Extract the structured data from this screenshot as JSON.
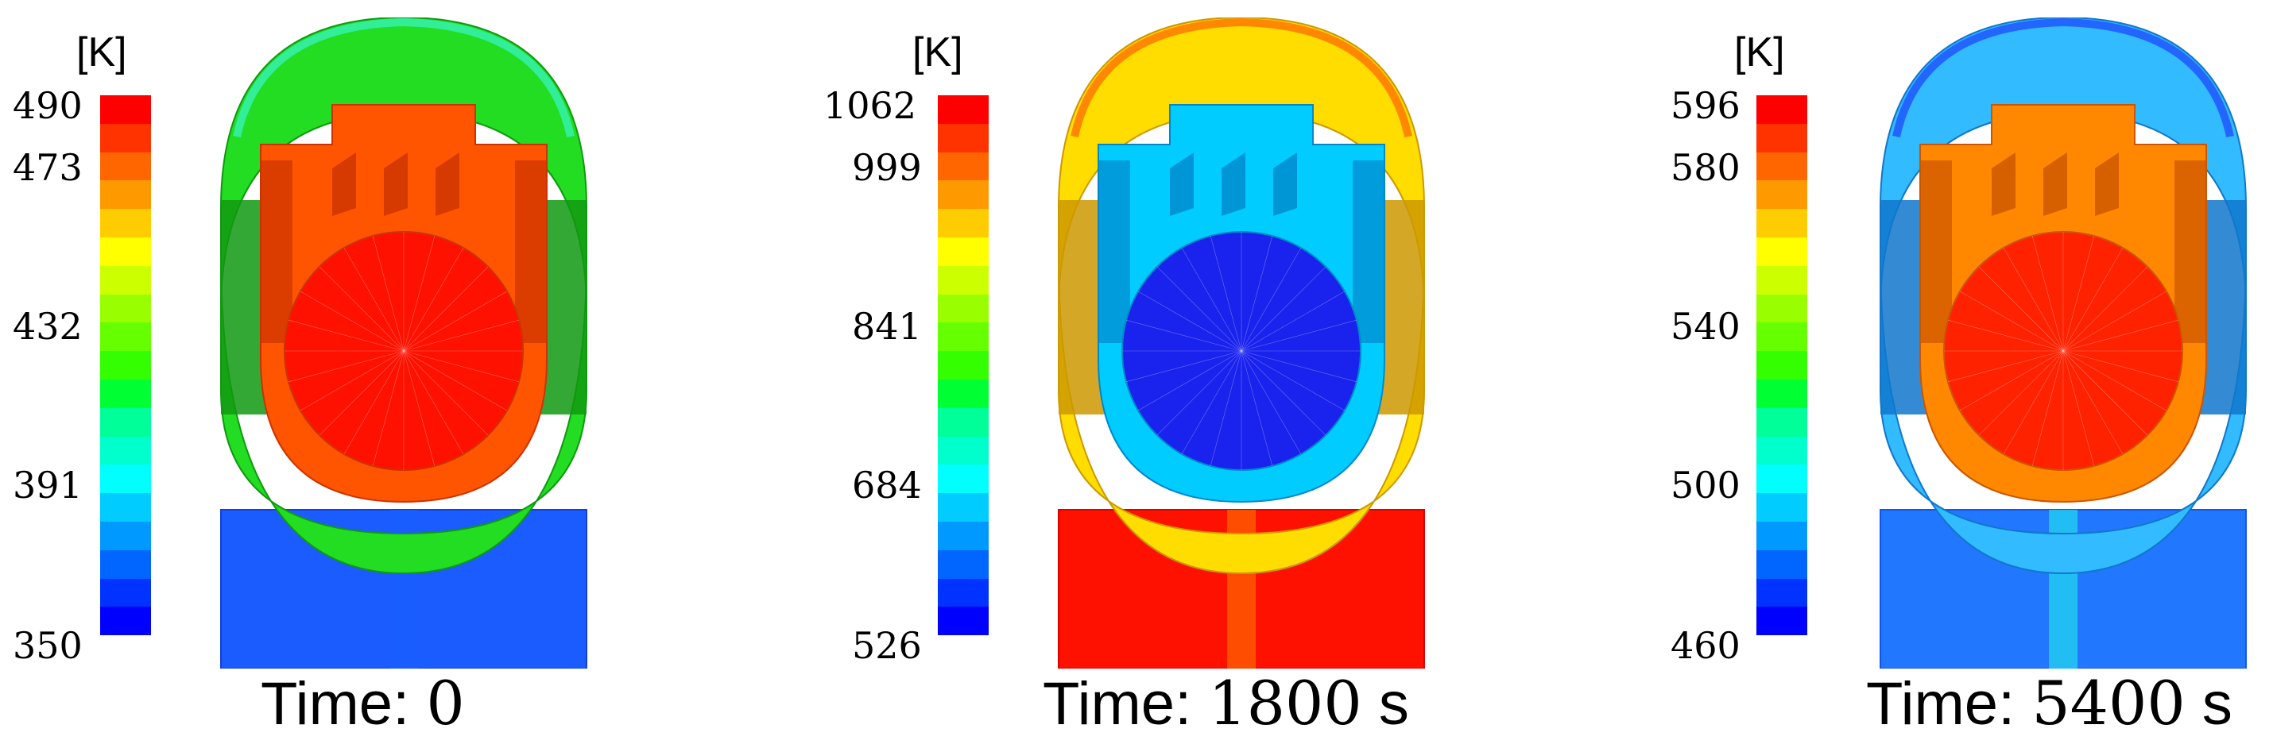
{
  "colorbar_colors": [
    "#ff0000",
    "#ff3300",
    "#ff6600",
    "#ff9900",
    "#ffcc00",
    "#ffff00",
    "#ccff00",
    "#99ff00",
    "#66ff00",
    "#33ff00",
    "#00ff33",
    "#00ff99",
    "#00ffcc",
    "#00ffff",
    "#00ccff",
    "#0099ff",
    "#0066ff",
    "#0033ff",
    "#0000ff"
  ],
  "panels": [
    {
      "unit": "[K]",
      "ticks": [
        "490",
        "473",
        "432",
        "391",
        "350"
      ],
      "caption_label": "Time:",
      "caption_value": "0",
      "caption_unit": "",
      "colors": {
        "outer": "#22dd22",
        "outer_dark": "#119911",
        "outer_top": "#33ee99",
        "inner_ring": "#ff5500",
        "inner_dark": "#cc3300",
        "core": "#ff1100",
        "block": "#1a5cff",
        "block_edge": "#1140dd",
        "stem": "#1a5cff"
      }
    },
    {
      "unit": "[K]",
      "ticks": [
        "1062",
        "999",
        "841",
        "684",
        "526"
      ],
      "caption_label": "Time:",
      "caption_value": "1800",
      "caption_unit": "s",
      "colors": {
        "outer": "#ffdd00",
        "outer_dark": "#cc9900",
        "outer_top": "#ff8800",
        "inner_ring": "#00ccff",
        "inner_dark": "#0088cc",
        "core": "#1a22ee",
        "block": "#ff1100",
        "block_edge": "#dd0000",
        "stem": "#ff6600"
      }
    },
    {
      "unit": "[K]",
      "ticks": [
        "596",
        "580",
        "540",
        "500",
        "460"
      ],
      "caption_label": "Time:",
      "caption_value": "5400",
      "caption_unit": "s",
      "colors": {
        "outer": "#33bbff",
        "outer_dark": "#1177cc",
        "outer_top": "#2266ff",
        "inner_ring": "#ff8800",
        "inner_dark": "#cc5500",
        "core": "#ff2200",
        "block": "#2277ff",
        "block_edge": "#1155ee",
        "stem": "#22ddee"
      }
    }
  ]
}
